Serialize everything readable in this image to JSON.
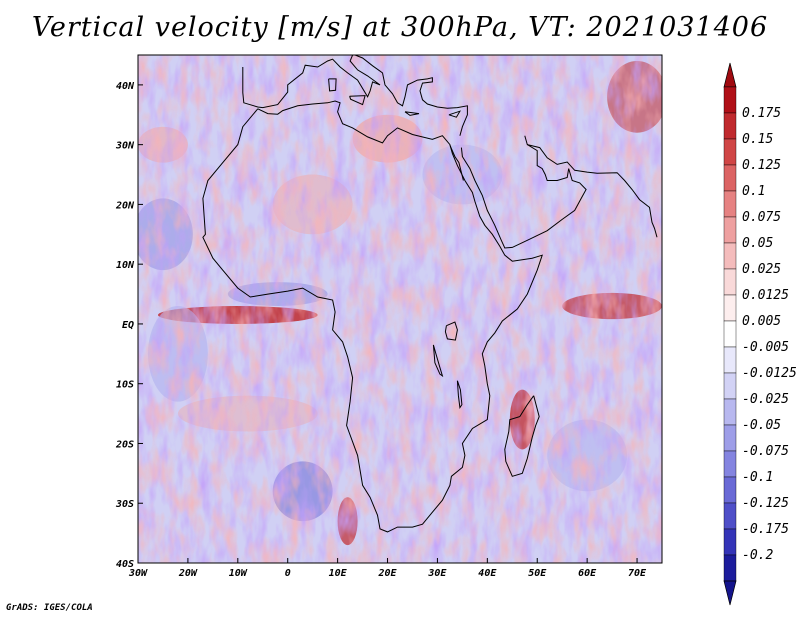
{
  "title": "Vertical velocity [m/s] at 300hPa, VT: 2021031406",
  "credit": "GrADS: IGES/COLA",
  "map": {
    "lon_range": [
      -30,
      75
    ],
    "lat_range": [
      -40,
      45
    ],
    "lon_ticks": [
      {
        "value": -30,
        "label": "30W"
      },
      {
        "value": -20,
        "label": "20W"
      },
      {
        "value": -10,
        "label": "10W"
      },
      {
        "value": 0,
        "label": "0"
      },
      {
        "value": 10,
        "label": "10E"
      },
      {
        "value": 20,
        "label": "20E"
      },
      {
        "value": 30,
        "label": "30E"
      },
      {
        "value": 40,
        "label": "40E"
      },
      {
        "value": 50,
        "label": "50E"
      },
      {
        "value": 60,
        "label": "60E"
      },
      {
        "value": 70,
        "label": "70E"
      }
    ],
    "lat_ticks": [
      {
        "value": 40,
        "label": "40N"
      },
      {
        "value": 30,
        "label": "30N"
      },
      {
        "value": 20,
        "label": "20N"
      },
      {
        "value": 10,
        "label": "10N"
      },
      {
        "value": 0,
        "label": "EQ"
      },
      {
        "value": -10,
        "label": "10S"
      },
      {
        "value": -20,
        "label": "20S"
      },
      {
        "value": -30,
        "label": "30S"
      },
      {
        "value": -40,
        "label": "40S"
      }
    ]
  },
  "colorbar": {
    "labels": [
      "0.175",
      "0.15",
      "0.125",
      "0.1",
      "0.075",
      "0.05",
      "0.025",
      "0.0125",
      "0.005",
      "-0.005",
      "-0.0125",
      "-0.025",
      "-0.05",
      "-0.075",
      "-0.1",
      "-0.125",
      "-0.175",
      "-0.2"
    ],
    "colors": [
      "#b01018",
      "#c02a2e",
      "#d04646",
      "#dc6464",
      "#e68282",
      "#eea0a0",
      "#f4bcbc",
      "#f9d9d9",
      "#fdeeee",
      "#ffffff",
      "#e8e8fb",
      "#d2d2f5",
      "#b8b8ef",
      "#9e9ee8",
      "#8484e0",
      "#6a6ad6",
      "#4f4fc8",
      "#3434b8",
      "#1c1c9c"
    ],
    "top_color": "#a00a10",
    "bottom_color": "#14148c"
  },
  "field_colors": {
    "base": "#d0d0f4",
    "up_strong": "#c02a2e",
    "up_light": "#f0a8a8",
    "down_strong": "#6a6ad6",
    "down_light": "#b0b0ee",
    "coast": "#000000"
  }
}
